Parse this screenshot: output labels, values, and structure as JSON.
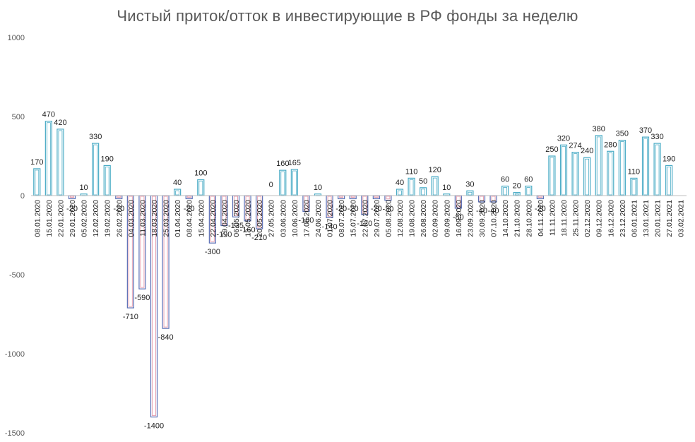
{
  "chart_data": {
    "type": "bar",
    "title": "Чистый приток/отток в инвестирующие в РФ фонды за неделю",
    "xlabel": "",
    "ylabel": "",
    "ylim": [
      -1500,
      1000
    ],
    "yticks": [
      1000,
      500,
      0,
      -500,
      -1000,
      -1500
    ],
    "grid": false,
    "legend": "none",
    "categories": [
      "08.01.2020",
      "15.01.2020",
      "22.01.2020",
      "29.01.2020",
      "05.02.2020",
      "12.02.2020",
      "19.02.2020",
      "26.02.2020",
      "04.03.2020",
      "11.03.2020",
      "18.03.2020",
      "25.03.2020",
      "01.04.2020",
      "08.04.2020",
      "15.04.2020",
      "22.04.2020",
      "29.04.2020",
      "06.05.2020",
      "13.05.2020",
      "20.05.2020",
      "27.05.2020",
      "03.06.2020",
      "10.06.2020",
      "17.06.2020",
      "24.06.2020",
      "01.07.2020",
      "08.07.2020",
      "15.07.2020",
      "22.07.2020",
      "29.07.2020",
      "05.08.2020",
      "12.08.2020",
      "19.08.2020",
      "26.08.2020",
      "02.09.2020",
      "09.09.2020",
      "16.09.2020",
      "23.09.2020",
      "30.09.2020",
      "07.10.2020",
      "14.10.2020",
      "21.10.2020",
      "28.10.2020",
      "04.11.2020",
      "11.11.2020",
      "18.11.2020",
      "25.11.2020",
      "02.12.2020",
      "09.12.2020",
      "16.12.2020",
      "23.12.2020",
      "06.01.2021",
      "13.01.2021",
      "20.01.2021",
      "27.01.2021",
      "03.02.2021"
    ],
    "values": [
      170,
      470,
      420,
      -20,
      10,
      330,
      190,
      -20,
      -710,
      -590,
      -1400,
      -840,
      40,
      -20,
      100,
      -300,
      -190,
      -135,
      -160,
      -210,
      0,
      160,
      165,
      -100,
      10,
      -140,
      -20,
      -20,
      -120,
      -20,
      -30,
      40,
      110,
      50,
      120,
      10,
      -80,
      30,
      -40,
      -40,
      60,
      20,
      60,
      -20,
      250,
      320,
      274,
      240,
      380,
      280,
      350,
      110,
      370,
      330,
      190,
      null
    ],
    "labels": [
      "170",
      "470",
      "420",
      "-20",
      "10",
      "330",
      "190",
      "-20",
      "-710",
      "-590",
      "-1400",
      "-840",
      "40",
      "-20",
      "100",
      "-300",
      "-190",
      "-135",
      "-160",
      "-210",
      "0",
      "160",
      "165",
      "-100",
      "10",
      "-140",
      "-20",
      "-20",
      "-120",
      "-20",
      "-30",
      "40",
      "110",
      "50",
      "120",
      "10",
      "-80",
      "30",
      "-40",
      "-40",
      "60",
      "20",
      "60",
      "-20",
      "250",
      "320",
      "274",
      "240",
      "380",
      "280",
      "350",
      "110",
      "370",
      "330",
      "190",
      ""
    ],
    "colors": {
      "positive_edge": "#4bacc6",
      "negative_edge": "#5b6fb5",
      "negative_inner": "#e7a3b3",
      "axis": "#bfbfbf"
    }
  }
}
